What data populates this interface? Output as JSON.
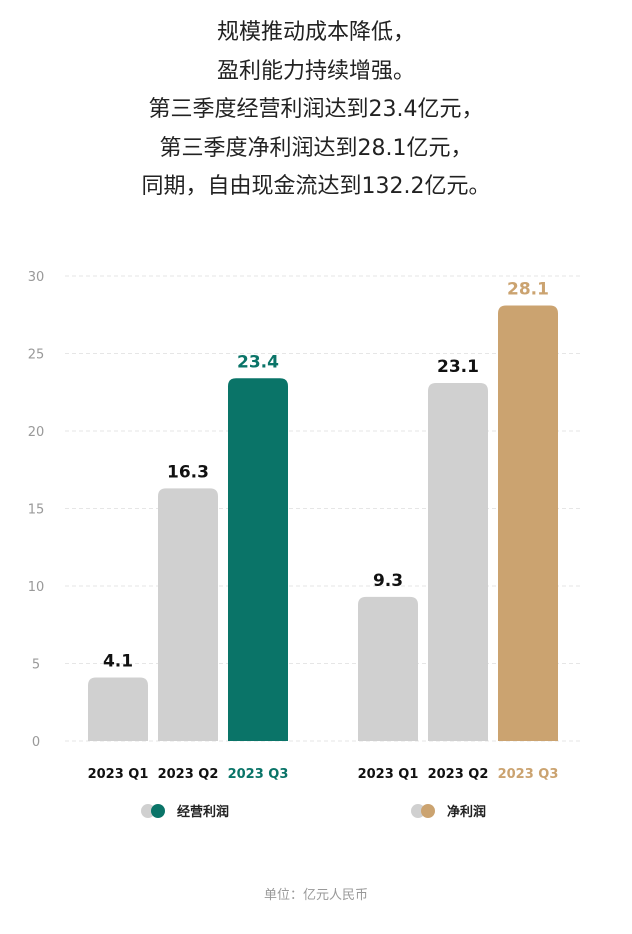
{
  "headline": [
    "规模推动成本降低，",
    "盈利能力持续增强。",
    "第三季度经营利润达到23.4亿元，",
    "第三季度净利润达到28.1亿元，",
    "同期，自由现金流达到132.2亿元。"
  ],
  "unit_note": "单位：亿元人民币",
  "chart_data": {
    "type": "bar",
    "ylim": [
      0,
      30
    ],
    "yticks": [
      0,
      5,
      10,
      15,
      20,
      25,
      30
    ],
    "grid": true,
    "legend_placement": "bottom",
    "groups": [
      {
        "name": "经营利润",
        "categories": [
          "2023 Q1",
          "2023 Q2",
          "2023 Q3"
        ],
        "values": [
          4.1,
          16.3,
          23.4
        ],
        "highlight_color": "#0a7468"
      },
      {
        "name": "净利润",
        "categories": [
          "2023 Q1",
          "2023 Q2",
          "2023 Q3"
        ],
        "values": [
          9.3,
          23.1,
          28.1
        ],
        "highlight_color": "#cba370"
      }
    ],
    "base_color": "#d0d0d0"
  }
}
